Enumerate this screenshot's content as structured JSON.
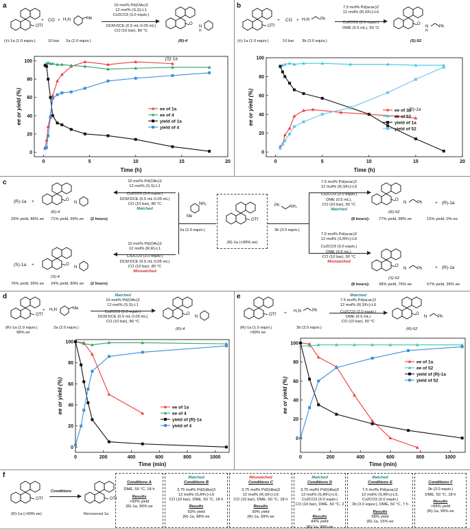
{
  "panels": {
    "a": {
      "letter": "a",
      "reactants": {
        "r1": "(±)-1a (1.0 equiv.)",
        "co": "CO",
        "co_amt": "10 bar",
        "r2": "2a (2.0 equiv.)",
        "plus": "+"
      },
      "conditions": [
        "10 mol% Pd(OAc)2",
        "12 mol% (S,S)-L1",
        "Cs2CO3 (3.0 equiv.)",
        "DCM:DCE (0.5 mL:0.05 mL)",
        "CO (10 bar), 80 °C"
      ],
      "product": "(R)-4"
    },
    "b": {
      "letter": "b",
      "reactants": {
        "r1": "(±)-1a (1.0 equiv.)",
        "co": "CO",
        "co_amt": "10 bar",
        "r2": "3b (3.0 equiv.)",
        "plus": "+"
      },
      "conditions": [
        "7.5 mol% Pd(acac)2",
        "12 mol% (R,SFc)-L6",
        "Cs2CO3 (3.0 equiv.)",
        "DME (0.5 mL), 50 °C"
      ],
      "product": "(S)-52"
    },
    "c": {
      "letter": "c",
      "left_top": {
        "r": "(R)-1a",
        "plus": "+",
        "p": "(R)-4",
        "yields": "29% yield, 86% ee",
        "pyield": "71% yield, 99% ee",
        "time": "(2 hours)"
      },
      "left_top_cond": [
        "10 mol% Pd(OAc)2",
        "12 mol% (S,S)-L1",
        "Cs2CO3 (3.0 equiv.)",
        "DCM:DCE (0.5 mL:0.05 mL)",
        "CO (10 bar), 80 °C"
      ],
      "left_top_tag": "Matched",
      "left_bot": {
        "r": "(S)-1a",
        "plus": "+",
        "p": "(S)-4",
        "yields": "76% yield, 95% ee",
        "pyield": "24% yield, 80% ee",
        "time": "(2 hours)"
      },
      "left_bot_cond": [
        "10 mol% Pd(OAc)2",
        "12 mol% (R,R)-L1",
        "Cs2CO3 (3.0 equiv.)",
        "DCM:DCE (0.5 mL:0.05 mL)",
        "CO (10 bar), 80 °C"
      ],
      "left_bot_tag": "Mismatched",
      "amine2a": "2a (2.0 equiv.)",
      "amine3b": "3b (3.0 equiv.)",
      "center": "(R)-1a (>99% ee)",
      "right_top_cond": [
        "7.5 mol% Pd(acac)2",
        "12 mol% (R,SFc)-L6",
        "Cs2CO3 (3.0 equiv.)",
        "DME (0.5 mL),",
        "CO (10 bar), 50 °C"
      ],
      "right_top_tag": "Matched",
      "right_top": {
        "p": "(R)-52",
        "time": "(8 hours):",
        "pyield": "77% yield, 98% ee",
        "plus": "+",
        "r": "(R)-1a",
        "ryield": "15% yield, 0% ee"
      },
      "right_bot_cond": [
        "7.5 mol% Pd(acac)2",
        "12 mol% (S,RFc)-L6",
        "Cs2CO3 (3.0 equiv.)",
        "DME (0.5 mL),",
        "CO (10 bar), 50 °C"
      ],
      "right_bot_tag": "Mismatched",
      "right_bot": {
        "p": "(S)-52",
        "time": "(8 hours):",
        "pyield": "38% yield, 76% ee",
        "plus": "+",
        "r": "(R)-1a",
        "ryield": "57% yield, 36% ee"
      }
    },
    "d": {
      "letter": "d",
      "reactants": {
        "r1": "(R)-1a (1.0 equiv.)",
        "r1b": "98% ee",
        "r2": "2a (2.0 equiv.)",
        "plus": "+"
      },
      "tag": "Matched",
      "conditions": [
        "10 mol% Pd(OAc)2",
        "12 mol% (S,S)-L1",
        "Cs2CO3 (3.0 equiv.)",
        "DCM:DCE (0.5 mL:0.05 mL)",
        "CO (10 bar), 80 °C"
      ],
      "product": "(R)-4"
    },
    "e": {
      "letter": "e",
      "reactants": {
        "r1": "(R)-1a (1.0 equiv.)",
        "r1b": ">99% ee",
        "r2": "3b (3.0 equiv.)",
        "plus": "+"
      },
      "tag": "Matched",
      "conditions": [
        "7.5 mol% Pd(acac)2",
        "12 mol% (R,SFc)-L6",
        "Cs2CO3 (3.0 equiv.)",
        "DME (0.5 mL)",
        "CO (10 bar), 50 °C"
      ],
      "product": "(R)-52"
    },
    "f": {
      "letter": "f",
      "start": "(R)-1a (>99% ee)",
      "arrow_label": "Conditions",
      "recovered": "Recovered 1a",
      "boxes": [
        {
          "tag": "",
          "title": "Conditions A",
          "lines": [
            "DME, 50 °C, 18 h"
          ],
          "res": "Results",
          "out": [
            ">99% yield",
            "(R)-1a, 99% ee"
          ]
        },
        {
          "tag": "Matched",
          "title": "Conditions B",
          "lines": [
            "3.75 mol% Pd2(dba)3",
            "12 mol% (S,RFc)-L6",
            "CO (10 bar), DME, 50 °C, 18 h"
          ],
          "res": "Results",
          "out": [
            "93% yield",
            "(R)-1a, 98% ee"
          ]
        },
        {
          "tag": "Mismatched",
          "title": "Conditions C",
          "lines": [
            "3.75 mol% Pd2(dba)3",
            "12 mol% (R,SFc)-L6",
            "CO (10 bar), DME, 50 °C, 18 h"
          ],
          "res": "Results",
          "out": [
            "99% yield",
            "(R)-1a, 99% ee"
          ]
        },
        {
          "tag": "Matched",
          "title": "Conditions D",
          "lines": [
            "3.75 mol% Pd2(dba)3",
            "12 mol% (S,RFc)-L6,",
            "Cs2CO3 (3.0 equiv.)",
            "CO (10 bar), DME, 50 °C, 2 h"
          ],
          "res": "Results",
          "out": [
            "84% yield",
            "(R)-1a, 99% ee"
          ]
        },
        {
          "tag": "Matched",
          "title": "Conditions E",
          "lines": [
            "7.5 mol% Pd(acac)2",
            "12 mol% (S,RFc)-L6,",
            "Cs2CO3 (3.0 equiv.)",
            "3b (3.0 equiv.), DME, 50 °C, 7 h"
          ],
          "res": "Results",
          "out": [
            "58% yield",
            "(R)-1a, 15% ee"
          ]
        },
        {
          "tag": "",
          "title": "Conditions F",
          "lines": [
            "3b (3.0 equiv.)",
            "DME, 50 °C, 18 h"
          ],
          "res": "Results",
          "out": [
            ">99% yield",
            "(R)-1a, 99% ee"
          ]
        }
      ]
    }
  },
  "chart_data": [
    {
      "type": "line",
      "id": "a",
      "xlabel": "Time (h)",
      "ylabel": "ee or yield (%)",
      "xlim": [
        -1,
        20
      ],
      "ylim": [
        -5,
        105
      ],
      "xticks": [
        0,
        5,
        10,
        15,
        20
      ],
      "yticks": [
        0,
        20,
        40,
        60,
        80,
        100
      ],
      "annotation": "(S)-1a",
      "legend": "right",
      "series": [
        {
          "name": "ee of 1a",
          "color": "#ef3b3b",
          "marker": "tri",
          "x": [
            0.17,
            0.33,
            0.5,
            0.75,
            1,
            1.5,
            2,
            3,
            4.5,
            7,
            10,
            14
          ],
          "y": [
            5,
            13,
            28,
            40,
            62,
            78,
            85,
            94,
            99,
            96,
            99,
            97
          ]
        },
        {
          "name": "ee of 4",
          "color": "#2ea36b",
          "marker": "tri",
          "x": [
            0.17,
            0.33,
            0.5,
            0.75,
            1,
            1.5,
            2,
            3,
            4.5,
            7,
            10,
            14,
            18
          ],
          "y": [
            96,
            97,
            98,
            97,
            97,
            96,
            96,
            95,
            94,
            91,
            92,
            93,
            93
          ]
        },
        {
          "name": "yield of 1a",
          "color": "#111111",
          "marker": "sq",
          "x": [
            0.17,
            0.33,
            0.5,
            0.75,
            1,
            1.5,
            2,
            3,
            4.5,
            7,
            10,
            14,
            18
          ],
          "y": [
            95,
            94,
            80,
            60,
            40,
            32,
            30,
            25,
            20,
            18,
            14,
            6,
            1
          ]
        },
        {
          "name": "yield of 4",
          "color": "#3b8fd9",
          "marker": "sq",
          "x": [
            0.17,
            0.33,
            0.5,
            0.75,
            1,
            1.5,
            2,
            3,
            4.5,
            7,
            10,
            14,
            18
          ],
          "y": [
            4,
            5,
            18,
            38,
            59,
            63,
            65,
            66,
            70,
            78,
            81,
            84,
            87
          ]
        }
      ]
    },
    {
      "type": "line",
      "id": "b",
      "xlabel": "Time (h)",
      "ylabel": "ee or yield (%)",
      "xlim": [
        -1,
        20
      ],
      "ylim": [
        -5,
        100
      ],
      "xticks": [
        0,
        5,
        10,
        15,
        20
      ],
      "yticks": [
        0,
        20,
        40,
        60,
        80,
        100
      ],
      "annotation": "(R)-1a",
      "legend": "center-right",
      "series": [
        {
          "name": "ee of 1a",
          "color": "#ef3b3b",
          "marker": "tri",
          "x": [
            0.5,
            0.75,
            1,
            1.5,
            2,
            3,
            4,
            7,
            10,
            13,
            15
          ],
          "y": [
            6,
            8,
            18,
            25,
            38,
            44,
            45,
            42,
            40,
            38,
            36
          ]
        },
        {
          "name": "ee of 52",
          "color": "#3fc7e8",
          "marker": "tri",
          "x": [
            0.5,
            0.75,
            1,
            1.5,
            2,
            3,
            5,
            8,
            12,
            15,
            18
          ],
          "y": [
            90,
            92,
            93,
            94,
            93,
            94,
            94,
            93,
            93,
            92,
            92
          ]
        },
        {
          "name": "yield of 1a",
          "color": "#111111",
          "marker": "sq",
          "x": [
            0.5,
            0.75,
            1,
            1.5,
            2,
            3,
            5,
            8,
            10,
            12,
            15,
            18
          ],
          "y": [
            91,
            85,
            80,
            73,
            66,
            62,
            57,
            47,
            40,
            28,
            14,
            1
          ]
        },
        {
          "name": "yield of 52",
          "color": "#6cc5f0",
          "marker": "sq",
          "x": [
            0.5,
            0.75,
            1,
            1.5,
            2,
            3,
            5,
            8,
            12,
            15,
            18
          ],
          "y": [
            4,
            8,
            12,
            19,
            27,
            32,
            40,
            47,
            63,
            77,
            90
          ]
        }
      ]
    },
    {
      "type": "line",
      "id": "d",
      "xlabel": "Time (min)",
      "ylabel": "ee or yield (%)",
      "xlim": [
        0,
        1100
      ],
      "ylim": [
        -5,
        102
      ],
      "xticks": [
        0,
        200,
        400,
        600,
        800,
        1000
      ],
      "yticks": [
        0,
        20,
        40,
        60,
        80,
        100
      ],
      "legend": "center-right",
      "series": [
        {
          "name": "ee of 1a",
          "color": "#ef3b3b",
          "marker": "tri",
          "x": [
            0,
            60,
            120,
            240,
            480
          ],
          "y": [
            100,
            99,
            88,
            50,
            32
          ]
        },
        {
          "name": "ee of 4",
          "color": "#2ea36b",
          "marker": "tri",
          "x": [
            0,
            60,
            120,
            240,
            480,
            1080
          ],
          "y": [
            100,
            98,
            97,
            99,
            99,
            98
          ]
        },
        {
          "name": "yield of (R)-1a",
          "color": "#111111",
          "marker": "sq",
          "x": [
            0,
            40,
            60,
            90,
            120,
            240,
            480,
            1080
          ],
          "y": [
            100,
            78,
            62,
            42,
            26,
            5,
            3,
            0
          ]
        },
        {
          "name": "yield of 4",
          "color": "#3b8fd9",
          "marker": "sq",
          "x": [
            0,
            40,
            60,
            90,
            120,
            240,
            480,
            1080
          ],
          "y": [
            2,
            20,
            35,
            55,
            72,
            86,
            90,
            96
          ]
        }
      ]
    },
    {
      "type": "line",
      "id": "e",
      "xlabel": "Time (min)",
      "ylabel": "ee or yield (%)",
      "xlim": [
        0,
        1100
      ],
      "ylim": [
        -15,
        105
      ],
      "xticks": [
        0,
        200,
        400,
        600,
        800,
        1000
      ],
      "yticks": [
        0,
        20,
        40,
        60,
        80,
        100
      ],
      "legend": "right",
      "series": [
        {
          "name": "ee of 1a",
          "color": "#ef3b3b",
          "marker": "tri",
          "x": [
            0,
            60,
            120,
            240,
            360,
            480,
            600,
            780
          ],
          "y": [
            100,
            99,
            85,
            75,
            45,
            18,
            0,
            -10
          ]
        },
        {
          "name": "ee of 52",
          "color": "#3fc7a0",
          "marker": "tri",
          "x": [
            0,
            60,
            120,
            240,
            360,
            480,
            600,
            780,
            1080
          ],
          "y": [
            97,
            97,
            98,
            98,
            98,
            98,
            98,
            98,
            98
          ]
        },
        {
          "name": "yield of (R)-1a",
          "color": "#111111",
          "marker": "sq",
          "x": [
            0,
            60,
            120,
            240,
            480,
            720,
            1080
          ],
          "y": [
            100,
            62,
            35,
            25,
            15,
            8,
            0
          ]
        },
        {
          "name": "yield of 52",
          "color": "#3b8fd9",
          "marker": "sq",
          "x": [
            0,
            60,
            120,
            240,
            480,
            720,
            1080
          ],
          "y": [
            0,
            32,
            60,
            74,
            84,
            92,
            96
          ]
        }
      ]
    }
  ]
}
